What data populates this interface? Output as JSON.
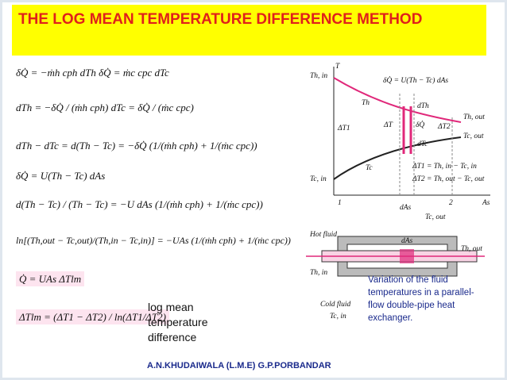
{
  "title": "THE LOG MEAN TEMPERATURE DIFFERENCE METHOD",
  "equations": [
    "δQ̇ = −ṁh cph dTh     δQ̇ = ṁc cpc dTc",
    "dTh = −δQ̇ / (ṁh cph)     dTc = δQ̇ / (ṁc cpc)",
    "dTh − dTc = d(Th − Tc) = −δQ̇ (1/(ṁh cph) + 1/(ṁc cpc))",
    "δQ̇ = U(Th − Tc) dAs",
    "d(Th − Tc) / (Th − Tc) = −U dAs (1/(ṁh cph) + 1/(ṁc cpc))",
    "ln[(Th,out − Tc,out)/(Th,in − Tc,in)] = −UAs (1/(ṁh cph) + 1/(ṁc cpc))",
    "Q̇ = UAs ΔTlm",
    "ΔTlm = (ΔT1 − ΔT2) / ln(ΔT1/ΔT2)"
  ],
  "note": "log mean temperature difference",
  "diagram": {
    "labels": [
      "T",
      "Th, in",
      "Th",
      "Tc",
      "Tc, in",
      "ΔT1",
      "ΔT",
      "dTh",
      "dTc",
      "Th, out",
      "Tc, out",
      "ΔT2",
      "δQ̇ = U(Th − Tc) dAs",
      "δQ̇",
      "ΔT1 = Th, in − Tc, in",
      "ΔT2 = Th, out − Tc, out",
      "1",
      "2",
      "As",
      "dAs",
      "Tc, out",
      "dAs",
      "Hot fluid",
      "Th, out",
      "Th, in",
      "Cold fluid",
      "Tc, in"
    ],
    "caption": "Variation of the fluid temperatures in a parallel-flow double-pipe heat exchanger."
  },
  "footer": "A.N.KHUDAIWALA (L.M.E) G.P.PORBANDAR"
}
